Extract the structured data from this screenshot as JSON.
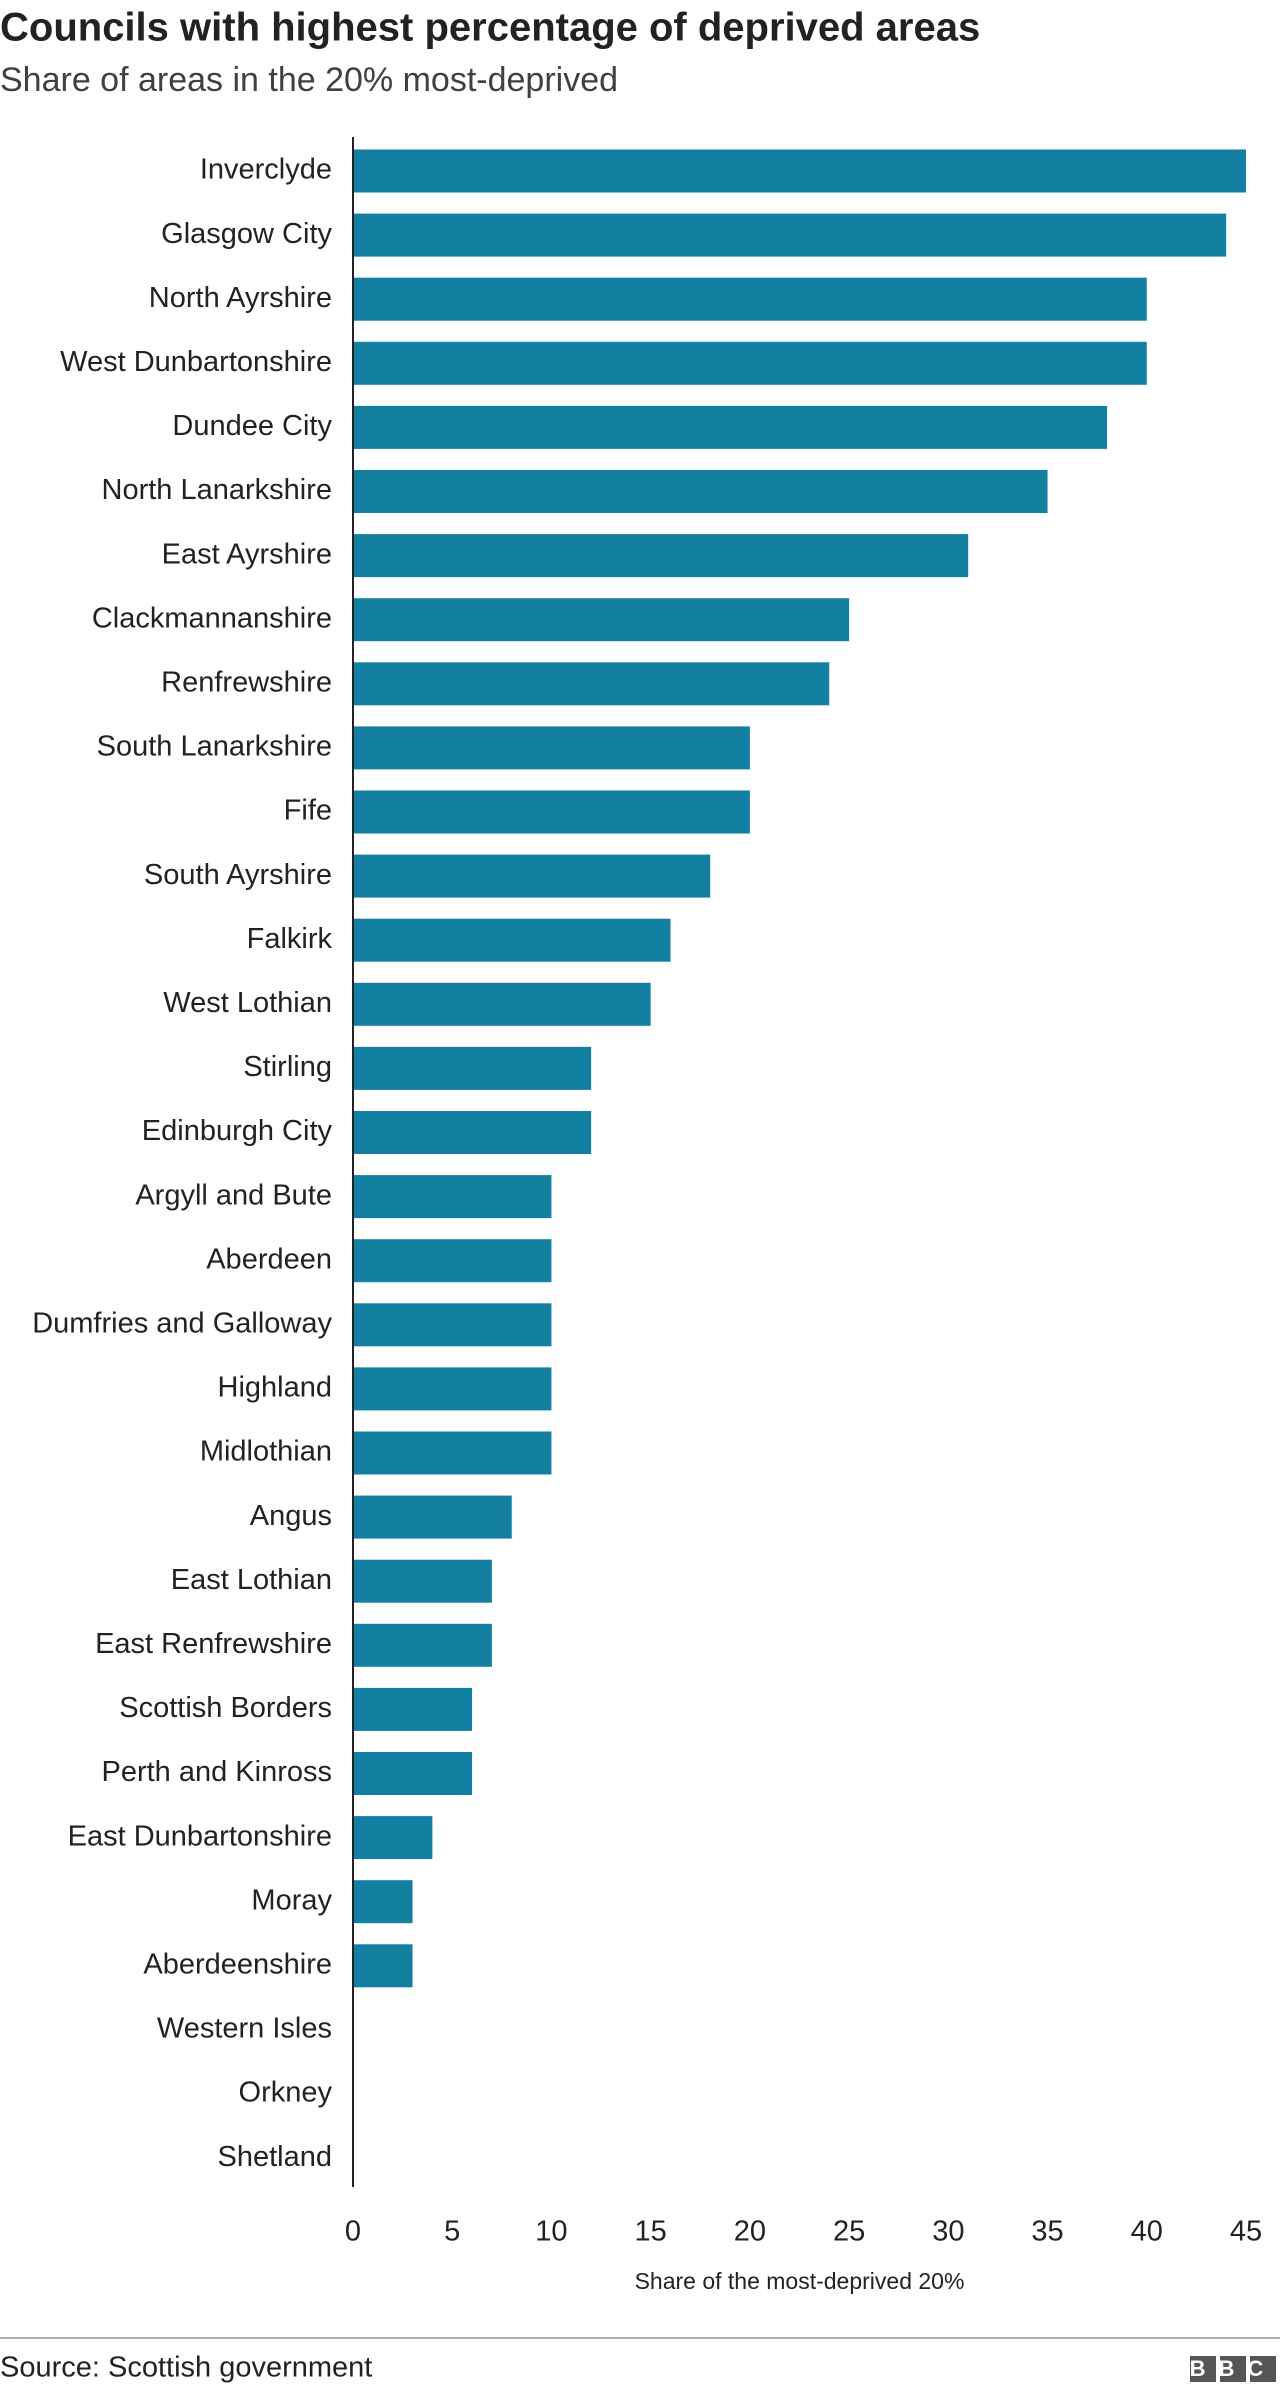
{
  "chart_data": {
    "type": "bar",
    "orientation": "horizontal",
    "title": "Councils with highest percentage of deprived areas",
    "subtitle": "Share of areas in the 20% most-deprived",
    "x_label": "Share of the most-deprived 20%",
    "source": "Source: Scottish government",
    "logo": "BBC",
    "categories": [
      "Inverclyde",
      "Glasgow City",
      "North Ayrshire",
      "West Dunbartonshire",
      "Dundee City",
      "North Lanarkshire",
      "East Ayrshire",
      "Clackmannanshire",
      "Renfrewshire",
      "South Lanarkshire",
      "Fife",
      "South Ayrshire",
      "Falkirk",
      "West Lothian",
      "Stirling",
      "Edinburgh City",
      "Argyll and Bute",
      "Aberdeen",
      "Dumfries and Galloway",
      "Highland",
      "Midlothian",
      "Angus",
      "East Lothian",
      "East Renfrewshire",
      "Scottish Borders",
      "Perth and Kinross",
      "East Dunbartonshire",
      "Moray",
      "Aberdeenshire",
      "Western Isles",
      "Orkney",
      "Shetland"
    ],
    "values": [
      45,
      44,
      40,
      40,
      38,
      35,
      31,
      25,
      24,
      20,
      20,
      18,
      16,
      15,
      12,
      12,
      10,
      10,
      10,
      10,
      10,
      8,
      7,
      7,
      6,
      6,
      4,
      3,
      3,
      0,
      0,
      0
    ],
    "color": "#1380a1",
    "xlim": [
      0,
      45
    ],
    "xticks": [
      0,
      5,
      10,
      15,
      20,
      25,
      30,
      35,
      40,
      45
    ],
    "grid": false
  }
}
